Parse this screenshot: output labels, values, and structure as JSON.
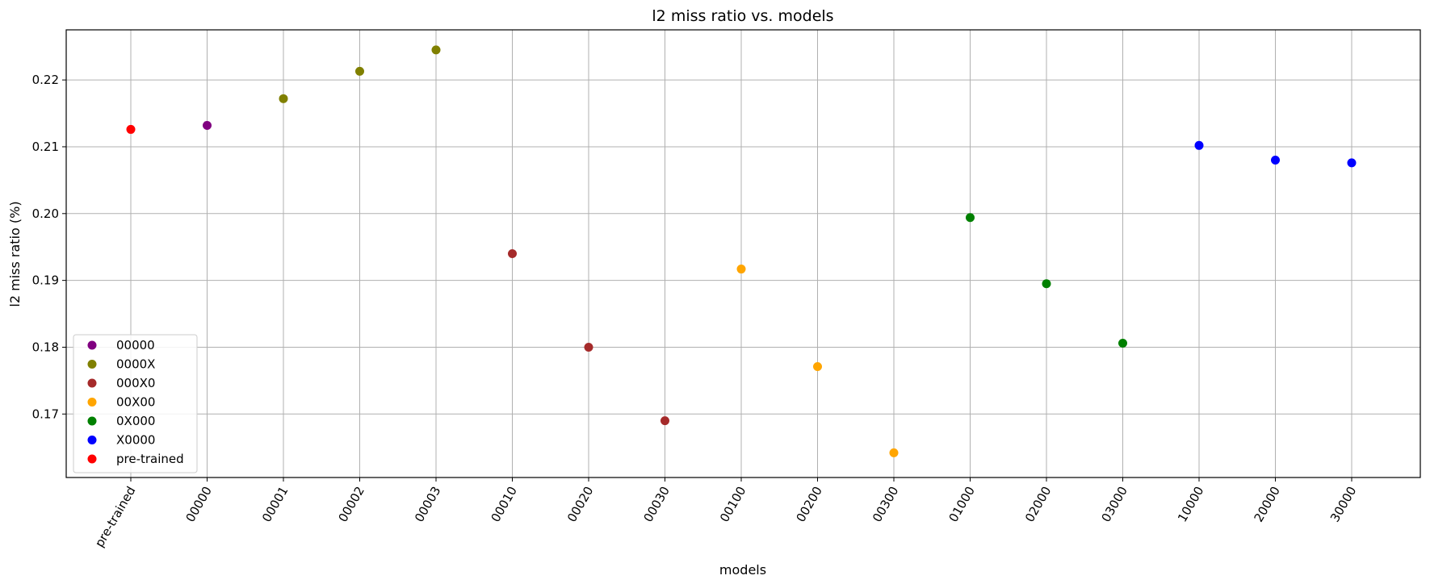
{
  "chart_data": {
    "type": "scatter",
    "title": "l2 miss ratio vs. models",
    "xlabel": "models",
    "ylabel": "l2 miss ratio (%)",
    "categories": [
      "pre-trained",
      "00000",
      "00001",
      "00002",
      "00003",
      "00010",
      "00020",
      "00030",
      "00100",
      "00200",
      "00300",
      "01000",
      "02000",
      "03000",
      "10000",
      "20000",
      "30000"
    ],
    "ylim": [
      0.1605,
      0.2275
    ],
    "yticks": [
      0.17,
      0.18,
      0.19,
      0.2,
      0.21,
      0.22
    ],
    "ytick_labels": [
      "0.17",
      "0.18",
      "0.19",
      "0.20",
      "0.21",
      "0.22"
    ],
    "grid": true,
    "legend_position": "lower-left",
    "series": [
      {
        "name": "00000",
        "color": "#800080",
        "points": [
          {
            "x": "00000",
            "y": 0.2132
          }
        ]
      },
      {
        "name": "0000X",
        "color": "#808000",
        "points": [
          {
            "x": "00001",
            "y": 0.2172
          },
          {
            "x": "00002",
            "y": 0.2213
          },
          {
            "x": "00003",
            "y": 0.2245
          }
        ]
      },
      {
        "name": "000X0",
        "color": "#a52a2a",
        "points": [
          {
            "x": "00010",
            "y": 0.194
          },
          {
            "x": "00020",
            "y": 0.18
          },
          {
            "x": "00030",
            "y": 0.169
          }
        ]
      },
      {
        "name": "00X00",
        "color": "#ffa500",
        "points": [
          {
            "x": "00100",
            "y": 0.1917
          },
          {
            "x": "00200",
            "y": 0.1771
          },
          {
            "x": "00300",
            "y": 0.1642
          }
        ]
      },
      {
        "name": "0X000",
        "color": "#008000",
        "points": [
          {
            "x": "01000",
            "y": 0.1994
          },
          {
            "x": "02000",
            "y": 0.1895
          },
          {
            "x": "03000",
            "y": 0.1806
          }
        ]
      },
      {
        "name": "X0000",
        "color": "#0000ff",
        "points": [
          {
            "x": "10000",
            "y": 0.2102
          },
          {
            "x": "20000",
            "y": 0.208
          },
          {
            "x": "30000",
            "y": 0.2076
          }
        ]
      },
      {
        "name": "pre-trained",
        "color": "#ff0000",
        "points": [
          {
            "x": "pre-trained",
            "y": 0.2126
          }
        ]
      }
    ]
  }
}
